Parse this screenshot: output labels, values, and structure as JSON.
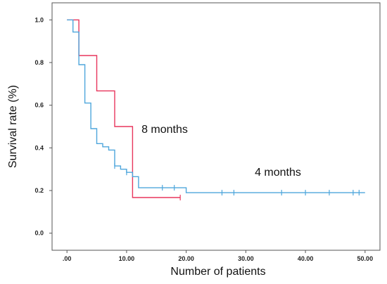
{
  "chart_data": {
    "type": "line",
    "title": "",
    "xlabel": "Number of patients",
    "ylabel": "Survival rate (%)",
    "xlim": [
      -2.5,
      52.5
    ],
    "ylim": [
      -0.08,
      1.08
    ],
    "x_ticks": [
      0,
      10,
      20,
      30,
      40,
      50
    ],
    "x_tick_labels": [
      ".00",
      "10.00",
      "20.00",
      "30.00",
      "40.00",
      "50.00"
    ],
    "y_ticks": [
      0.0,
      0.2,
      0.4,
      0.6,
      0.8,
      1.0
    ],
    "y_tick_labels": [
      "0.0",
      "0.2",
      "0.4",
      "0.6",
      "0.8",
      "1.0"
    ],
    "grid": false,
    "series": [
      {
        "color": "#e8365d",
        "step_points": [
          [
            0,
            1.0
          ],
          [
            2,
            1.0
          ],
          [
            2,
            0.833
          ],
          [
            5,
            0.833
          ],
          [
            5,
            0.667
          ],
          [
            8,
            0.667
          ],
          [
            8,
            0.5
          ],
          [
            11,
            0.5
          ],
          [
            11,
            0.167
          ],
          [
            19,
            0.167
          ]
        ],
        "censor_marks": [
          [
            19,
            0.167
          ]
        ]
      },
      {
        "color": "#4ea6dc",
        "step_points": [
          [
            0,
            1.0
          ],
          [
            1,
            1.0
          ],
          [
            1,
            0.943
          ],
          [
            2,
            0.943
          ],
          [
            2,
            0.79
          ],
          [
            3,
            0.79
          ],
          [
            3,
            0.61
          ],
          [
            4,
            0.61
          ],
          [
            4,
            0.49
          ],
          [
            5,
            0.49
          ],
          [
            5,
            0.42
          ],
          [
            6,
            0.42
          ],
          [
            6,
            0.405
          ],
          [
            7,
            0.405
          ],
          [
            7,
            0.39
          ],
          [
            8,
            0.39
          ],
          [
            8,
            0.315
          ],
          [
            9,
            0.315
          ],
          [
            9,
            0.3
          ],
          [
            10,
            0.3
          ],
          [
            10,
            0.285
          ],
          [
            11,
            0.285
          ],
          [
            11,
            0.265
          ],
          [
            12,
            0.265
          ],
          [
            12,
            0.213
          ],
          [
            20,
            0.213
          ],
          [
            20,
            0.19
          ],
          [
            50,
            0.19
          ]
        ],
        "censor_marks": [
          [
            8,
            0.315
          ],
          [
            10,
            0.285
          ],
          [
            16,
            0.213
          ],
          [
            18,
            0.213
          ],
          [
            26,
            0.19
          ],
          [
            28,
            0.19
          ],
          [
            36,
            0.19
          ],
          [
            40,
            0.19
          ],
          [
            44,
            0.19
          ],
          [
            48,
            0.19
          ],
          [
            49,
            0.19
          ]
        ]
      }
    ],
    "annotations": [
      {
        "text": "8 months",
        "x": 12.5,
        "y": 0.47
      },
      {
        "text": "4 months",
        "x": 31.5,
        "y": 0.27
      }
    ]
  }
}
